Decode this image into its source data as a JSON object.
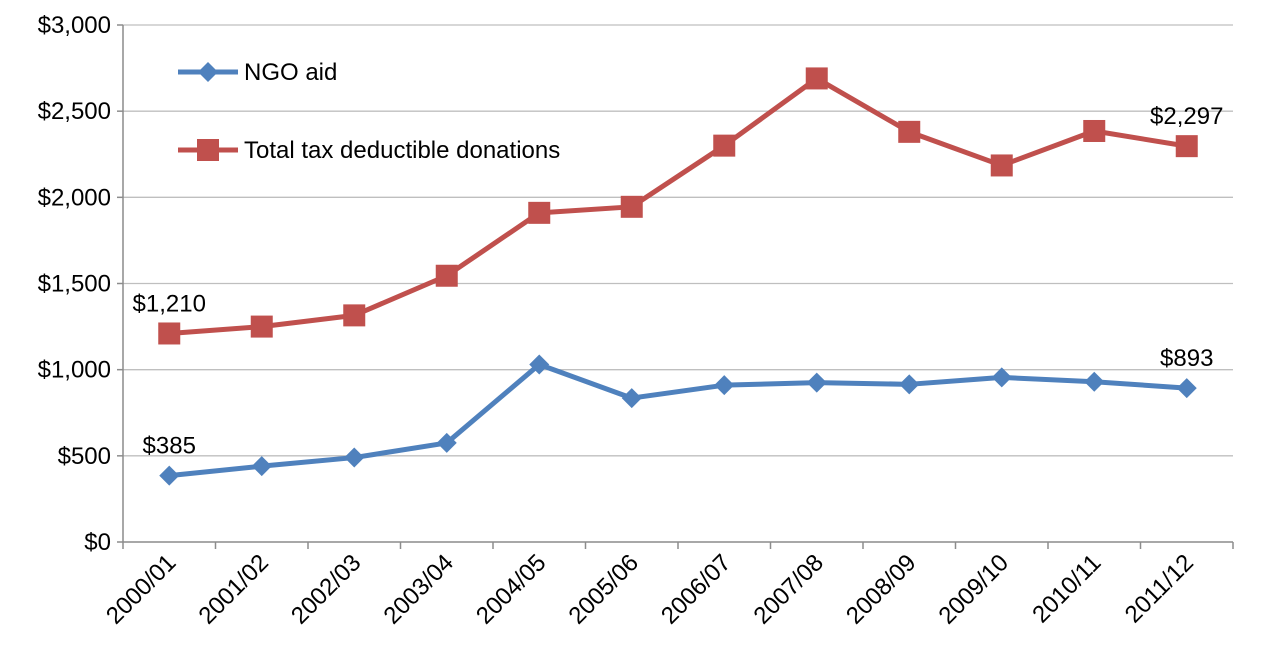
{
  "chart_data": {
    "type": "line",
    "title": "",
    "xlabel": "",
    "ylabel": "",
    "ylim": [
      0,
      3000
    ],
    "yticks": [
      0,
      500,
      1000,
      1500,
      2000,
      2500,
      3000
    ],
    "ytick_labels": [
      "$0",
      "$500",
      "$1,000",
      "$1,500",
      "$2,000",
      "$2,500",
      "$3,000"
    ],
    "grid": "horizontal",
    "legend_position": "top-left",
    "categories": [
      "2000/01",
      "2001/02",
      "2002/03",
      "2003/04",
      "2004/05",
      "2005/06",
      "2006/07",
      "2007/08",
      "2008/09",
      "2009/10",
      "2010/11",
      "2011/12"
    ],
    "series": [
      {
        "name": "NGO aid",
        "color": "#4f81bd",
        "marker": "diamond",
        "values": [
          385,
          440,
          490,
          575,
          1030,
          835,
          910,
          925,
          915,
          955,
          930,
          893
        ]
      },
      {
        "name": "Total tax deductible donations",
        "color": "#c0504d",
        "marker": "square",
        "values": [
          1210,
          1250,
          1315,
          1545,
          1910,
          1945,
          2300,
          2690,
          2380,
          2185,
          2385,
          2297
        ]
      }
    ],
    "annotations": [
      {
        "series": 0,
        "index": 0,
        "text": "$385"
      },
      {
        "series": 0,
        "index": 11,
        "text": "$893"
      },
      {
        "series": 1,
        "index": 0,
        "text": "$1,210"
      },
      {
        "series": 1,
        "index": 11,
        "text": "$2,297"
      }
    ]
  }
}
